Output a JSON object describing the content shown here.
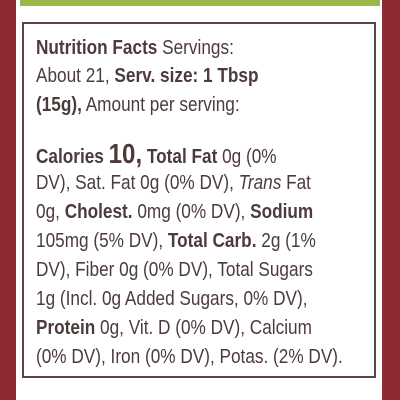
{
  "label": {
    "lines": [
      [
        {
          "text": "Nutrition Facts",
          "style": "bold"
        },
        {
          "text": " Servings:",
          "style": "normal"
        }
      ],
      [
        {
          "text": "About 21, ",
          "style": "normal"
        },
        {
          "text": "Serv. size: 1 Tbsp",
          "style": "bold"
        }
      ],
      [
        {
          "text": "(15g),",
          "style": "bold"
        },
        {
          "text": " Amount per serving:",
          "style": "normal"
        }
      ],
      [
        {
          "text": "Calories ",
          "style": "bold"
        },
        {
          "text": "10,",
          "style": "big-bold"
        },
        {
          "text": " Total Fat",
          "style": "bold"
        },
        {
          "text": " 0g (0%",
          "style": "normal"
        }
      ],
      [
        {
          "text": "DV), Sat. Fat 0g (0% DV), ",
          "style": "normal"
        },
        {
          "text": "Trans",
          "style": "italic"
        },
        {
          "text": " Fat",
          "style": "normal"
        }
      ],
      [
        {
          "text": "0g, ",
          "style": "normal"
        },
        {
          "text": "Cholest.",
          "style": "bold"
        },
        {
          "text": " 0mg (0% DV), ",
          "style": "normal"
        },
        {
          "text": "Sodium",
          "style": "bold"
        }
      ],
      [
        {
          "text": "105mg (5% DV), ",
          "style": "normal"
        },
        {
          "text": "Total Carb.",
          "style": "bold"
        },
        {
          "text": " 2g (1%",
          "style": "normal"
        }
      ],
      [
        {
          "text": "DV), Fiber 0g (0% DV), Total Sugars",
          "style": "normal"
        }
      ],
      [
        {
          "text": "1g (Incl. 0g Added Sugars, 0% DV),",
          "style": "normal"
        }
      ],
      [
        {
          "text": "Protein",
          "style": "bold"
        },
        {
          "text": " 0g, Vit. D (0% DV), Calcium",
          "style": "normal"
        }
      ],
      [
        {
          "text": "(0% DV), Iron (0% DV), Potas. (2% DV).",
          "style": "normal"
        }
      ]
    ]
  }
}
